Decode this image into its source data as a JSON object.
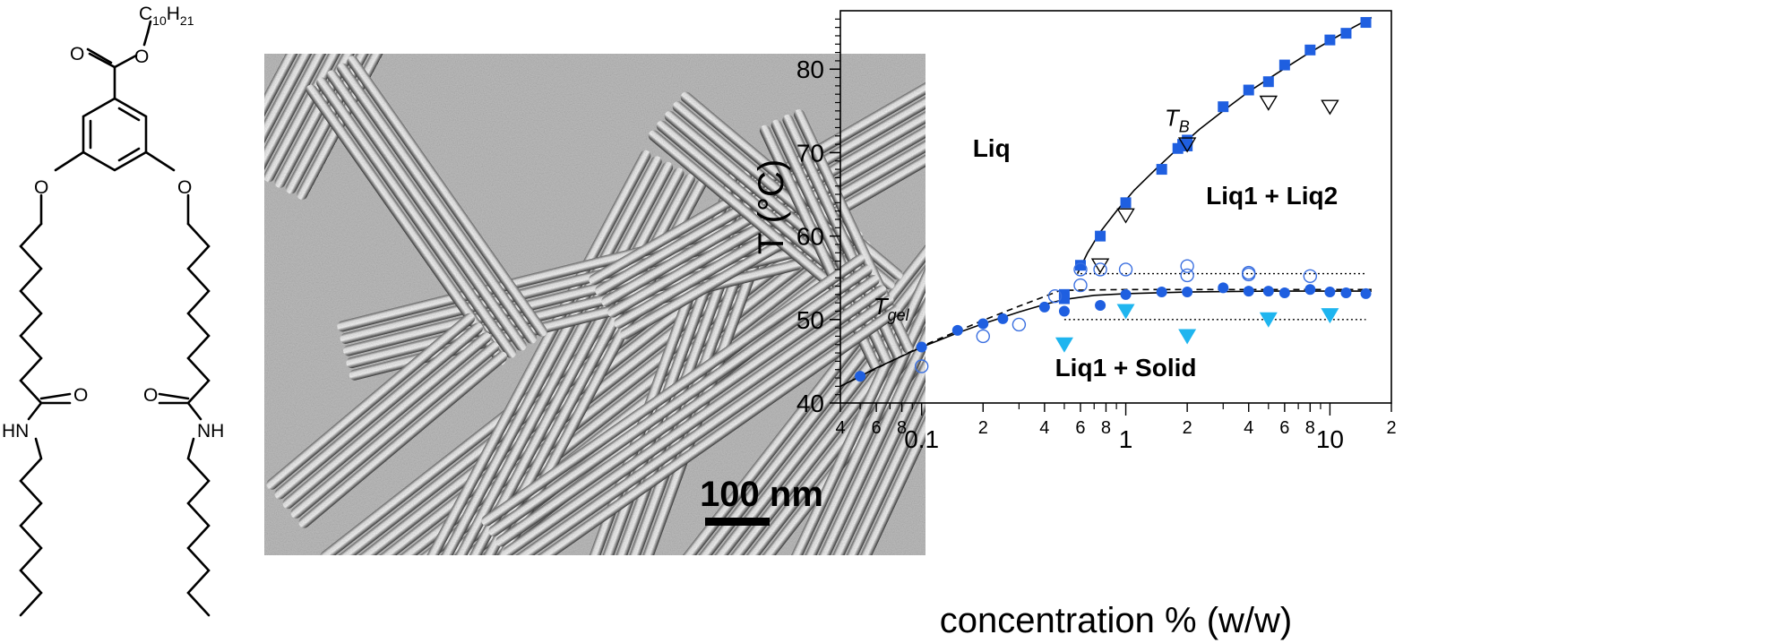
{
  "molecule": {
    "atoms": {
      "ester_o_carbonyl": "O",
      "ester_o_ether": "O",
      "alkyl_chain": "C10H21",
      "ether_left": "O",
      "ether_right": "O",
      "amide_left_o": "O",
      "amide_left_nh": "HN",
      "amide_right_o": "O",
      "amide_right_nh": "NH"
    },
    "alkyl_prefix": "C",
    "alkyl_sub1": "10",
    "alkyl_mid": "H",
    "alkyl_sub2": "21"
  },
  "micrograph": {
    "scale_bar_label": "100 nm"
  },
  "chart_data": {
    "type": "scatter",
    "xscale": "log",
    "xlim": [
      0.04,
      20
    ],
    "ylim": [
      40,
      87
    ],
    "xlabel": "concentration % (w/w)",
    "ylabel": "T (°C)",
    "x_tick_labels": [
      {
        "value": 0.04,
        "label": "4"
      },
      {
        "value": 0.06,
        "label": "6"
      },
      {
        "value": 0.08,
        "label": "8"
      },
      {
        "value": 0.1,
        "label": "0.1"
      },
      {
        "value": 0.2,
        "label": "2"
      },
      {
        "value": 0.4,
        "label": "4"
      },
      {
        "value": 0.6,
        "label": "6"
      },
      {
        "value": 0.8,
        "label": "8"
      },
      {
        "value": 1,
        "label": "1"
      },
      {
        "value": 2,
        "label": "2"
      },
      {
        "value": 4,
        "label": "4"
      },
      {
        "value": 6,
        "label": "6"
      },
      {
        "value": 8,
        "label": "8"
      },
      {
        "value": 10,
        "label": "10"
      },
      {
        "value": 20,
        "label": "2"
      }
    ],
    "y_ticks": [
      40,
      50,
      60,
      70,
      80
    ],
    "region_labels": [
      {
        "text": "Liq",
        "x": 0.22,
        "y": 69.5
      },
      {
        "text": "Liq1 + Liq2",
        "x": 5.2,
        "y": 63.8
      },
      {
        "text": "Liq1 + Solid",
        "x": 1.0,
        "y": 43.2
      }
    ],
    "curve_labels": {
      "tb_main": "T",
      "tb_sub": "B",
      "tgel_main": "T",
      "tgel_sub": "gel"
    },
    "colors": {
      "blue": "#1f5fe0",
      "cyan": "#1fb5ef",
      "open_blue": "#3a6fe0",
      "black": "#000000"
    },
    "series": [
      {
        "marker": "filled-square",
        "color": "#1f5fe0",
        "points": [
          [
            0.6,
            56.5
          ],
          [
            0.75,
            60
          ],
          [
            1,
            64
          ],
          [
            1.5,
            68
          ],
          [
            1.8,
            70.5
          ],
          [
            1.9,
            71
          ],
          [
            2,
            70.8
          ],
          [
            2,
            71.5
          ],
          [
            3,
            75.5
          ],
          [
            4,
            77.5
          ],
          [
            5,
            78.5
          ],
          [
            6,
            80.5
          ],
          [
            8,
            82.3
          ],
          [
            10,
            83.5
          ],
          [
            12,
            84.3
          ],
          [
            15,
            85.6
          ],
          [
            0.5,
            52.5
          ],
          [
            0.5,
            53
          ]
        ]
      },
      {
        "marker": "open-triangle-down",
        "color": "#000000",
        "points": [
          [
            0.75,
            56.5
          ],
          [
            1,
            62.5
          ],
          [
            2,
            71
          ],
          [
            5,
            76
          ],
          [
            10,
            75.5
          ]
        ]
      },
      {
        "marker": "filled-circle",
        "color": "#1f5fe0",
        "points": [
          [
            0.05,
            43.2
          ],
          [
            0.1,
            46.7
          ],
          [
            0.15,
            48.7
          ],
          [
            0.2,
            49.5
          ],
          [
            0.25,
            50.1
          ],
          [
            0.4,
            51.5
          ],
          [
            0.5,
            51
          ],
          [
            0.5,
            52.6
          ],
          [
            0.75,
            51.7
          ],
          [
            1,
            53
          ],
          [
            1.5,
            53.3
          ],
          [
            2,
            53.3
          ],
          [
            3,
            53.8
          ],
          [
            4,
            53.4
          ],
          [
            5,
            53.4
          ],
          [
            6,
            53.2
          ],
          [
            8,
            53.6
          ],
          [
            10,
            53.3
          ],
          [
            12,
            53.2
          ],
          [
            15,
            53.1
          ]
        ]
      },
      {
        "marker": "open-circle",
        "color": "#3a6fe0",
        "points": [
          [
            0.1,
            44.4
          ],
          [
            0.2,
            48
          ],
          [
            0.3,
            49.4
          ],
          [
            0.45,
            52.8
          ],
          [
            0.6,
            54.1
          ],
          [
            0.6,
            56
          ],
          [
            0.75,
            56
          ],
          [
            1,
            56
          ],
          [
            2,
            56.4
          ],
          [
            2,
            55.3
          ],
          [
            4,
            55.6
          ],
          [
            4,
            55.4
          ],
          [
            8,
            55.2
          ]
        ]
      },
      {
        "marker": "filled-triangle-down",
        "color": "#1fb5ef",
        "points": [
          [
            0.5,
            47
          ],
          [
            1,
            51
          ],
          [
            2,
            48
          ],
          [
            5,
            50
          ],
          [
            10,
            50.5
          ]
        ]
      }
    ],
    "lines": [
      {
        "name": "TB fit",
        "style": "solid",
        "points": [
          [
            0.58,
            55.5
          ],
          [
            0.65,
            58
          ],
          [
            0.75,
            60.5
          ],
          [
            0.9,
            63
          ],
          [
            1.1,
            65.5
          ],
          [
            1.4,
            68
          ],
          [
            1.8,
            70.5
          ],
          [
            2.3,
            72.8
          ],
          [
            3,
            75
          ],
          [
            4,
            77.3
          ],
          [
            5.5,
            79.5
          ],
          [
            7.5,
            81.6
          ],
          [
            10,
            83.4
          ],
          [
            13,
            85
          ],
          [
            16,
            86.2
          ]
        ]
      },
      {
        "name": "Tgel fit",
        "style": "solid",
        "points": [
          [
            0.04,
            42
          ],
          [
            0.06,
            44.2
          ],
          [
            0.08,
            45.6
          ],
          [
            0.1,
            46.7
          ],
          [
            0.15,
            48.4
          ],
          [
            0.2,
            49.5
          ],
          [
            0.3,
            50.9
          ],
          [
            0.4,
            51.8
          ],
          [
            0.5,
            52.4
          ],
          [
            0.7,
            52.9
          ],
          [
            1,
            53.1
          ],
          [
            2,
            53.3
          ],
          [
            5,
            53.4
          ],
          [
            16,
            53.4
          ]
        ]
      },
      {
        "name": "Tgel dashed",
        "style": "dashed",
        "points": [
          [
            0.04,
            42
          ],
          [
            0.1,
            46.8
          ],
          [
            0.2,
            49.9
          ],
          [
            0.3,
            51.6
          ],
          [
            0.48,
            53.5
          ],
          [
            1,
            53.6
          ],
          [
            16,
            53.6
          ]
        ]
      },
      {
        "name": "upper tie",
        "style": "dotted",
        "points": [
          [
            0.6,
            55.5
          ],
          [
            15,
            55.5
          ]
        ]
      },
      {
        "name": "lower tie",
        "style": "dotted",
        "points": [
          [
            0.5,
            50
          ],
          [
            15,
            50
          ]
        ]
      }
    ]
  }
}
